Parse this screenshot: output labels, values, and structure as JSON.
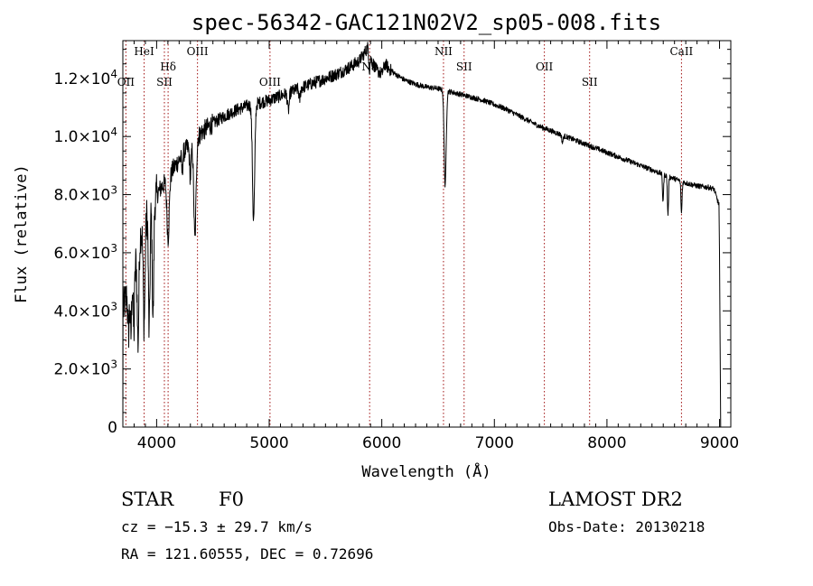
{
  "chart_data": {
    "type": "line",
    "title": "spec-56342-GAC121N02V2_sp05-008.fits",
    "xlabel": "Wavelength (Å)",
    "ylabel": "Flux (relative)",
    "xlim": [
      3700,
      9100
    ],
    "ylim": [
      0,
      13300
    ],
    "grid": false,
    "legend": "none",
    "line_color": "#000000",
    "marker_color": "#a01010",
    "xticks": [
      {
        "value": 4000,
        "label": "4000"
      },
      {
        "value": 5000,
        "label": "5000"
      },
      {
        "value": 6000,
        "label": "6000"
      },
      {
        "value": 7000,
        "label": "7000"
      },
      {
        "value": 8000,
        "label": "8000"
      },
      {
        "value": 9000,
        "label": "9000"
      }
    ],
    "yticks": [
      {
        "value": 0,
        "mantissa": "0",
        "exp": ""
      },
      {
        "value": 2000,
        "mantissa": "2.0×10",
        "exp": "3"
      },
      {
        "value": 4000,
        "mantissa": "4.0×10",
        "exp": "3"
      },
      {
        "value": 6000,
        "mantissa": "6.0×10",
        "exp": "3"
      },
      {
        "value": 8000,
        "mantissa": "8.0×10",
        "exp": "3"
      },
      {
        "value": 10000,
        "mantissa": "1.0×10",
        "exp": "4"
      },
      {
        "value": 12000,
        "mantissa": "1.2×10",
        "exp": "4"
      }
    ],
    "continuum": [
      [
        3700,
        4000
      ],
      [
        3720,
        4300
      ],
      [
        3750,
        4700
      ],
      [
        3780,
        5000
      ],
      [
        3800,
        5500
      ],
      [
        3830,
        6000
      ],
      [
        3860,
        6700
      ],
      [
        3900,
        7200
      ],
      [
        3950,
        7700
      ],
      [
        4000,
        8000
      ],
      [
        4050,
        8300
      ],
      [
        4100,
        8500
      ],
      [
        4150,
        8900
      ],
      [
        4200,
        9200
      ],
      [
        4250,
        9500
      ],
      [
        4300,
        9700
      ],
      [
        4350,
        9900
      ],
      [
        4400,
        10150
      ],
      [
        4500,
        10450
      ],
      [
        4600,
        10700
      ],
      [
        4700,
        10900
      ],
      [
        4800,
        11050
      ],
      [
        4900,
        11150
      ],
      [
        5000,
        11250
      ],
      [
        5100,
        11400
      ],
      [
        5200,
        11550
      ],
      [
        5300,
        11700
      ],
      [
        5400,
        11850
      ],
      [
        5500,
        12000
      ],
      [
        5600,
        12150
      ],
      [
        5700,
        12350
      ],
      [
        5800,
        12600
      ],
      [
        5850,
        12900
      ],
      [
        5880,
        13100
      ],
      [
        5900,
        12700
      ],
      [
        5950,
        12300
      ],
      [
        6000,
        12150
      ],
      [
        6030,
        12500
      ],
      [
        6060,
        12350
      ],
      [
        6100,
        12200
      ],
      [
        6200,
        11950
      ],
      [
        6300,
        11800
      ],
      [
        6400,
        11700
      ],
      [
        6500,
        11650
      ],
      [
        6600,
        11550
      ],
      [
        6700,
        11450
      ],
      [
        6800,
        11350
      ],
      [
        6900,
        11250
      ],
      [
        7000,
        11100
      ],
      [
        7100,
        10950
      ],
      [
        7200,
        10750
      ],
      [
        7300,
        10550
      ],
      [
        7400,
        10350
      ],
      [
        7500,
        10200
      ],
      [
        7600,
        10050
      ],
      [
        7700,
        9900
      ],
      [
        7800,
        9750
      ],
      [
        7900,
        9600
      ],
      [
        8000,
        9450
      ],
      [
        8100,
        9300
      ],
      [
        8200,
        9150
      ],
      [
        8300,
        9000
      ],
      [
        8400,
        8850
      ],
      [
        8500,
        8700
      ],
      [
        8600,
        8550
      ],
      [
        8700,
        8400
      ],
      [
        8800,
        8300
      ],
      [
        8900,
        8250
      ],
      [
        8950,
        8200
      ],
      [
        8990,
        7700
      ]
    ],
    "absorption_lines": [
      {
        "center": 3750,
        "depth": 1500,
        "width": 6
      },
      {
        "center": 3771,
        "depth": 1800,
        "width": 6
      },
      {
        "center": 3798,
        "depth": 2200,
        "width": 6
      },
      {
        "center": 3835,
        "depth": 3200,
        "width": 7
      },
      {
        "center": 3889,
        "depth": 3500,
        "width": 8
      },
      {
        "center": 3934,
        "depth": 4300,
        "width": 7
      },
      {
        "center": 3968,
        "depth": 4000,
        "width": 7
      },
      {
        "center": 4102,
        "depth": 2000,
        "width": 10
      },
      {
        "center": 4227,
        "depth": 600,
        "width": 5
      },
      {
        "center": 4300,
        "depth": 1100,
        "width": 7
      },
      {
        "center": 4340,
        "depth": 3400,
        "width": 10
      },
      {
        "center": 4861,
        "depth": 4000,
        "width": 10
      },
      {
        "center": 5170,
        "depth": 600,
        "width": 8
      },
      {
        "center": 5270,
        "depth": 400,
        "width": 6
      },
      {
        "center": 5890,
        "depth": 600,
        "width": 5
      },
      {
        "center": 6563,
        "depth": 3300,
        "width": 9
      },
      {
        "center": 7605,
        "depth": 250,
        "width": 6
      },
      {
        "center": 8498,
        "depth": 900,
        "width": 5
      },
      {
        "center": 8542,
        "depth": 1300,
        "width": 5
      },
      {
        "center": 8662,
        "depth": 1100,
        "width": 5
      }
    ],
    "edge_drop": [
      [
        9000,
        6000
      ],
      [
        9010,
        0
      ]
    ],
    "spectral_markers": [
      {
        "wavelength": 3727,
        "label": "OII",
        "row": "mid"
      },
      {
        "wavelength": 3889,
        "label": "HeI",
        "row": "top"
      },
      {
        "wavelength": 4069,
        "label": "SII",
        "row": "mid"
      },
      {
        "wavelength": 4102,
        "label": "Hδ",
        "row": "upper"
      },
      {
        "wavelength": 4363,
        "label": "OIII",
        "row": "top"
      },
      {
        "wavelength": 5007,
        "label": "OIII",
        "row": "mid"
      },
      {
        "wavelength": 5892,
        "label": "Na",
        "row": "lowtop"
      },
      {
        "wavelength": 6548,
        "label": "NII",
        "row": "top"
      },
      {
        "wavelength": 6731,
        "label": "SII",
        "row": "upper"
      },
      {
        "wavelength": 7444,
        "label": "OII",
        "row": "upper"
      },
      {
        "wavelength": 7846,
        "label": "SII",
        "row": "mid"
      },
      {
        "wavelength": 8662,
        "label": "CaII",
        "row": "top"
      }
    ]
  },
  "info": {
    "object_class": "STAR",
    "subclass": "F0",
    "velocity": "cz = −15.3 ± 29.7 km/s",
    "coords": "RA = 121.60555, DEC =   0.72696",
    "survey": "LAMOST DR2",
    "obs_date": "Obs-Date: 20130218"
  }
}
